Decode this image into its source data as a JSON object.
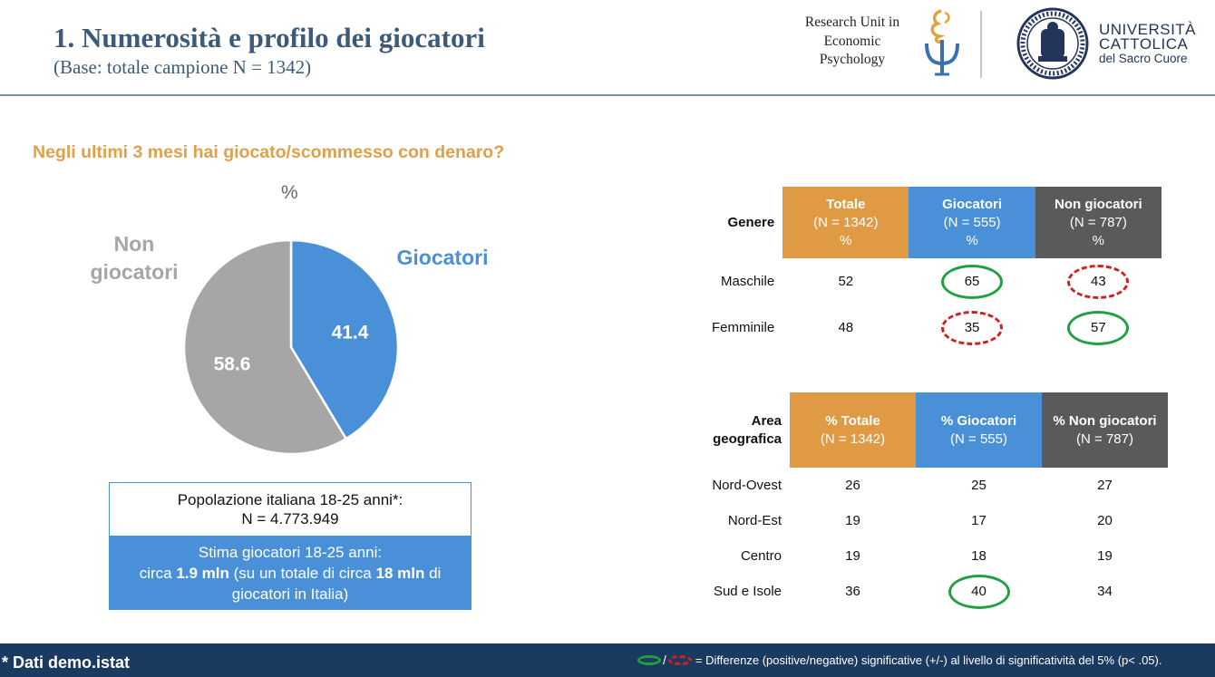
{
  "header": {
    "title": "1. Numerosità e profilo dei giocatori",
    "subtitle": "(Base: totale campione N = 1342)",
    "research_unit": [
      "Research Unit in",
      "Economic",
      "Psychology"
    ],
    "university": [
      "UNIVERSITÀ",
      "CATTOLICA",
      "del Sacro Cuore"
    ]
  },
  "question": "Negli ultimi 3 mesi hai giocato/scommesso con denaro?",
  "pct_label": "%",
  "chart_data": {
    "type": "pie",
    "categories": [
      "Giocatori",
      "Non giocatori"
    ],
    "values": [
      41.4,
      58.6
    ],
    "value_labels": [
      "41.4",
      "58.6"
    ],
    "category_labels": [
      [
        "Giocatori"
      ],
      [
        "Non",
        "giocatori"
      ]
    ],
    "colors": [
      "#4a90d9",
      "#a6a6a6"
    ],
    "label_colors": [
      "#4a90d9",
      "#a6a6a6"
    ]
  },
  "popbox": {
    "line1": "Popolazione italiana 18-25 anni*:",
    "line2": "N = 4.773.949",
    "stima_line1": "Stima giocatori 18-25 anni:",
    "stima_pre": "circa ",
    "stima_bold1": "1.9 mln",
    "stima_mid": " (su un totale di circa ",
    "stima_bold2": "18 mln",
    "stima_post": " di",
    "stima_line3": "giocatori in Italia)"
  },
  "table_genere": {
    "row_header": "Genere",
    "columns": [
      {
        "name": "Totale",
        "n": "(N = 1342)",
        "unit": "%"
      },
      {
        "name": "Giocatori",
        "n": "(N = 555)",
        "unit": "%"
      },
      {
        "name": "Non giocatori",
        "n": "(N = 787)",
        "unit": "%"
      }
    ],
    "rows": [
      {
        "label": "Maschile",
        "values": [
          "52",
          "65",
          "43"
        ],
        "marks": [
          "",
          "pos",
          "neg"
        ]
      },
      {
        "label": "Femminile",
        "values": [
          "48",
          "35",
          "57"
        ],
        "marks": [
          "",
          "neg",
          "pos"
        ]
      }
    ]
  },
  "table_area": {
    "row_header": [
      "Area",
      "geografica"
    ],
    "columns": [
      {
        "name": "% Totale",
        "n": "(N = 1342)"
      },
      {
        "name": "% Giocatori",
        "n": "(N = 555)"
      },
      {
        "name": "% Non giocatori",
        "n": "(N = 787)"
      }
    ],
    "rows": [
      {
        "label": "Nord-Ovest",
        "values": [
          "26",
          "25",
          "27"
        ],
        "marks": [
          "",
          "",
          ""
        ]
      },
      {
        "label": "Nord-Est",
        "values": [
          "19",
          "17",
          "20"
        ],
        "marks": [
          "",
          "",
          ""
        ]
      },
      {
        "label": "Centro",
        "values": [
          "19",
          "18",
          "19"
        ],
        "marks": [
          "",
          "",
          ""
        ]
      },
      {
        "label": "Sud e Isole",
        "values": [
          "36",
          "40",
          "34"
        ],
        "marks": [
          "",
          "pos",
          ""
        ]
      }
    ]
  },
  "footer": {
    "source": "* Dati demo.istat",
    "legend_slash": "/",
    "legend_text": "= Differenze (positive/negative) significative (+/-) al livello di significatività del 5% (p< .05)."
  }
}
